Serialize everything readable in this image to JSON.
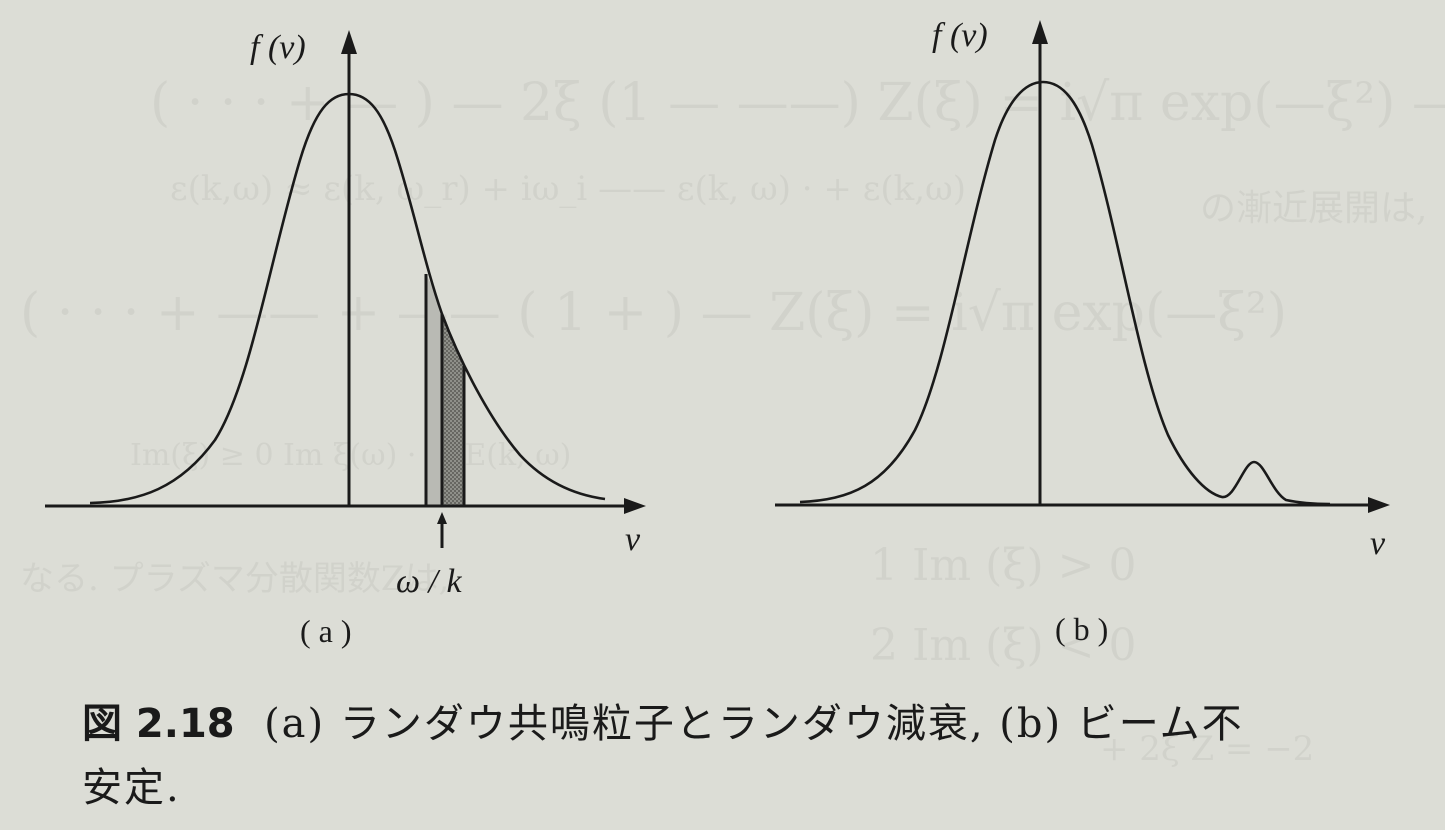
{
  "figure": {
    "panel_a": {
      "y_label": "f (v)",
      "x_label": "v",
      "resonance_label": "ω / k",
      "panel_label": "( a )"
    },
    "panel_b": {
      "y_label": "f (v)",
      "x_label": "v",
      "panel_label": "( b )"
    }
  },
  "caption": {
    "figure_number": "図 2.18",
    "text_line1": "(a) ランダウ共鳴粒子とランダウ減衰, (b) ビーム不",
    "text_line2": "安定."
  }
}
